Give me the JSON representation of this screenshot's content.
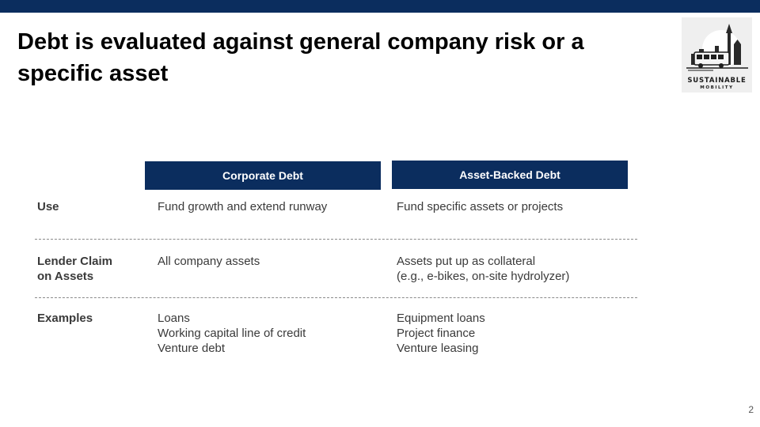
{
  "slide": {
    "title": "Debt is evaluated against general company risk or a specific asset",
    "page_number": "2"
  },
  "logo": {
    "line1": "SUSTAINABLE",
    "line2": "MOBILITY"
  },
  "table": {
    "columns": [
      "Corporate Debt",
      "Asset-Backed Debt"
    ],
    "rows": [
      {
        "label": "Use",
        "corporate": "Fund growth and extend runway",
        "asset_backed": "Fund specific assets or projects"
      },
      {
        "label": "Lender Claim\non Assets",
        "corporate": "All company assets",
        "asset_backed": "Assets put up as collateral\n(e.g., e-bikes, on-site hydrolyzer)"
      },
      {
        "label": "Examples",
        "corporate": "Loans\nWorking capital line of credit\nVenture debt",
        "asset_backed": "Equipment loans\nProject finance\nVenture leasing"
      }
    ]
  },
  "colors": {
    "header_navy": "#0b2d5e",
    "body_text": "#3a3a3a"
  }
}
